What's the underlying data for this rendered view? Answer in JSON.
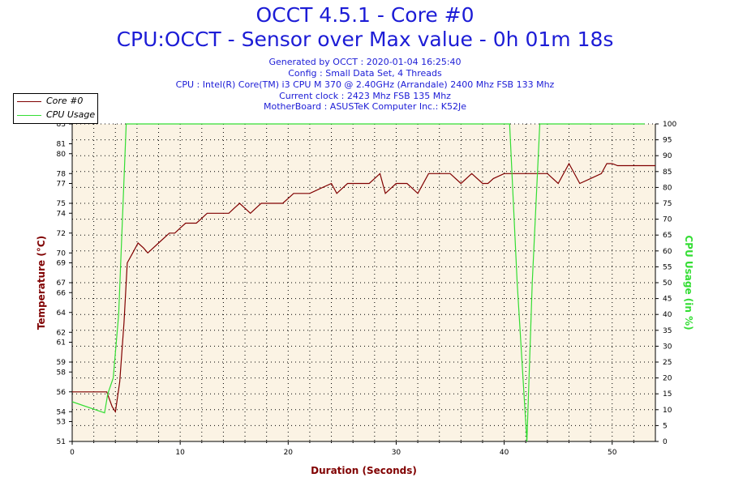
{
  "header": {
    "title_line1": "OCCT 4.5.1 - Core #0",
    "title_line2": "CPU:OCCT - Sensor over Max value - 0h 01m 18s",
    "generated": "Generated by OCCT : 2020-01-04 16:25:40",
    "config": "Config : Small Data Set, 4 Threads",
    "cpu": "CPU : Intel(R) Core(TM) i3 CPU M 370 @ 2.40GHz (Arrandale) 2400 Mhz FSB 133 Mhz",
    "clock": "Current clock : 2423 Mhz FSB 135 Mhz",
    "motherboard": "MotherBoard : ASUSTeK Computer Inc.: K52Je"
  },
  "colors": {
    "temperature": "#800000",
    "cpu_usage": "#33dd33",
    "plot_background": "#fbf3e4",
    "title": "#1c1cd6"
  },
  "chart_data": {
    "type": "line",
    "xlabel": "Duration (Seconds)",
    "ylabel": "Temperature (°C)",
    "y2label": "CPU Usage (in %)",
    "xlim": [
      0,
      54
    ],
    "ylim": [
      51,
      83
    ],
    "y2lim": [
      0,
      100
    ],
    "grid": true,
    "legend_position": "top-left",
    "x_ticks": [
      0,
      10,
      20,
      30,
      40,
      50
    ],
    "y_ticks": [
      51,
      53,
      54,
      56,
      58,
      59,
      61,
      62,
      64,
      66,
      67,
      69,
      70,
      72,
      74,
      75,
      77,
      78,
      80,
      81,
      83
    ],
    "y2_ticks": [
      0,
      5,
      10,
      15,
      20,
      25,
      30,
      35,
      40,
      45,
      50,
      55,
      60,
      65,
      70,
      75,
      80,
      85,
      90,
      95,
      100
    ],
    "series": [
      {
        "name": "Core #0",
        "axis": "left",
        "points": [
          [
            0,
            56
          ],
          [
            3.2,
            56
          ],
          [
            3.7,
            54.5
          ],
          [
            4,
            54
          ],
          [
            4.4,
            57
          ],
          [
            4.8,
            63
          ],
          [
            5.1,
            69
          ],
          [
            5.6,
            70
          ],
          [
            6.1,
            71
          ],
          [
            6.6,
            70.5
          ],
          [
            7,
            70
          ],
          [
            8,
            71
          ],
          [
            9,
            72
          ],
          [
            9.5,
            72
          ],
          [
            10,
            72.5
          ],
          [
            10.5,
            73
          ],
          [
            11.5,
            73
          ],
          [
            12,
            73.5
          ],
          [
            12.5,
            74
          ],
          [
            14,
            74
          ],
          [
            14.5,
            74
          ],
          [
            15,
            74.5
          ],
          [
            15.5,
            75
          ],
          [
            16,
            74.5
          ],
          [
            16.5,
            74
          ],
          [
            17,
            74.5
          ],
          [
            17.5,
            75
          ],
          [
            19,
            75
          ],
          [
            19.5,
            75
          ],
          [
            20,
            75.5
          ],
          [
            20.5,
            76
          ],
          [
            22,
            76
          ],
          [
            23,
            76.5
          ],
          [
            24,
            77
          ],
          [
            24.5,
            76
          ],
          [
            25,
            76.5
          ],
          [
            25.5,
            77
          ],
          [
            27,
            77
          ],
          [
            27.5,
            77
          ],
          [
            28,
            77.5
          ],
          [
            28.5,
            78
          ],
          [
            29,
            76
          ],
          [
            29.5,
            76.5
          ],
          [
            30,
            77
          ],
          [
            31,
            77
          ],
          [
            31.5,
            76.5
          ],
          [
            32,
            76
          ],
          [
            33,
            78
          ],
          [
            35,
            78
          ],
          [
            36,
            77
          ],
          [
            37,
            78
          ],
          [
            38,
            77
          ],
          [
            38.5,
            77
          ],
          [
            39,
            77.5
          ],
          [
            40,
            78
          ],
          [
            41,
            78
          ],
          [
            43,
            78
          ],
          [
            44,
            78
          ],
          [
            45,
            77
          ],
          [
            46,
            79
          ],
          [
            47,
            77
          ],
          [
            48,
            77.5
          ],
          [
            49,
            78
          ],
          [
            49.5,
            79
          ],
          [
            50,
            79
          ],
          [
            50.5,
            78.8
          ],
          [
            54,
            78.8
          ]
        ]
      },
      {
        "name": "CPU Usage",
        "axis": "right",
        "points": [
          [
            0,
            12.5
          ],
          [
            3,
            9
          ],
          [
            3.3,
            15
          ],
          [
            3.8,
            20
          ],
          [
            4.3,
            40
          ],
          [
            5,
            100
          ],
          [
            40.5,
            100
          ],
          [
            41.2,
            50
          ],
          [
            42.1,
            0
          ],
          [
            42.6,
            50
          ],
          [
            43.3,
            100
          ],
          [
            53,
            100
          ]
        ]
      }
    ]
  }
}
